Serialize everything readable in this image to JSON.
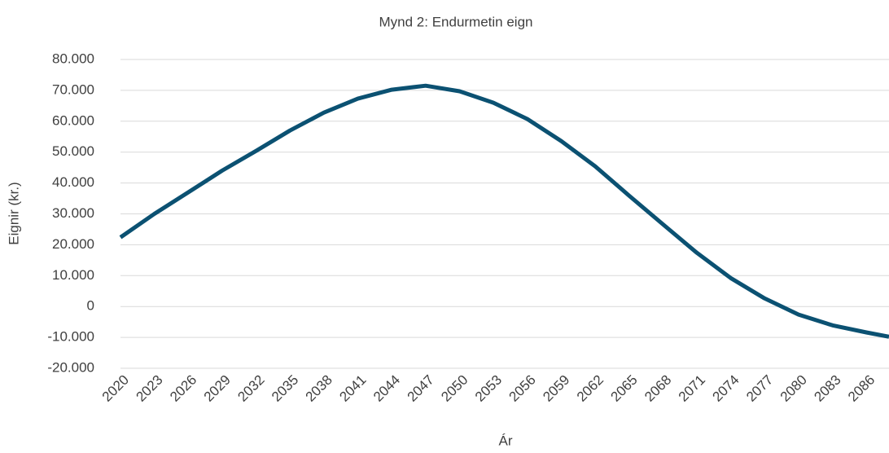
{
  "chart_data": {
    "type": "line",
    "title": "Mynd 2: Endurmetin eign",
    "xlabel": "Ár",
    "ylabel": "Eignir (kr.)",
    "x": [
      2020,
      2023,
      2026,
      2029,
      2032,
      2035,
      2038,
      2041,
      2044,
      2047,
      2050,
      2053,
      2056,
      2059,
      2062,
      2065,
      2068,
      2071,
      2074,
      2077,
      2080,
      2083,
      2086,
      2088
    ],
    "series": [
      {
        "name": "Eignir",
        "color": "#0b5172",
        "values": [
          22400,
          30000,
          37000,
          44000,
          50400,
          57000,
          62800,
          67300,
          70200,
          71500,
          69700,
          66000,
          60700,
          53600,
          45400,
          35900,
          26600,
          17400,
          9200,
          2600,
          -2600,
          -6100,
          -8400,
          -9800
        ]
      }
    ],
    "xlim": [
      2020,
      2088
    ],
    "xticks": [
      2020,
      2023,
      2026,
      2029,
      2032,
      2035,
      2038,
      2041,
      2044,
      2047,
      2050,
      2053,
      2056,
      2059,
      2062,
      2065,
      2068,
      2071,
      2074,
      2077,
      2080,
      2083,
      2086
    ],
    "ylim": [
      -20000,
      80000
    ],
    "yticks": [
      {
        "value": -20000,
        "label": "-20.000"
      },
      {
        "value": -10000,
        "label": "-10.000"
      },
      0,
      {
        "value": 10000,
        "label": "10.000"
      },
      {
        "value": 20000,
        "label": "20.000"
      },
      {
        "value": 30000,
        "label": "30.000"
      },
      {
        "value": 40000,
        "label": "40.000"
      },
      {
        "value": 50000,
        "label": "50.000"
      },
      {
        "value": 60000,
        "label": "60.000"
      },
      {
        "value": 70000,
        "label": "70.000"
      },
      {
        "value": 80000,
        "label": "80.000"
      }
    ],
    "grid": true
  }
}
